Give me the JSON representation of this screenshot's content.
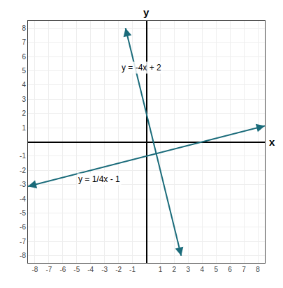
{
  "chart_data": {
    "type": "line",
    "xlabel": "x",
    "ylabel": "y",
    "series": [
      {
        "color": "#1a6b7a",
        "x": [
          -1.5,
          2.5
        ],
        "values": [
          8,
          -8
        ]
      },
      {
        "color": "#1a6b7a",
        "x": [
          -8.5,
          8.5
        ],
        "values": [
          -3.125,
          1.125
        ]
      }
    ],
    "xlim": [
      -8.5,
      8.5
    ],
    "ylim": [
      -8.5,
      8.5
    ],
    "xticks": [
      -8,
      -7,
      -6,
      -5,
      -4,
      -3,
      -2,
      -1,
      1,
      2,
      3,
      4,
      5,
      6,
      7,
      8
    ],
    "yticks": [
      -8,
      -7,
      -6,
      -5,
      -4,
      -3,
      -2,
      -1,
      1,
      2,
      3,
      4,
      5,
      6,
      7,
      8
    ],
    "grid": true,
    "annotations": [
      {
        "text": "y = -4x + 2",
        "x": -1.9,
        "y": 4.8
      },
      {
        "text": "y = 1/4x - 1",
        "x": -5.0,
        "y": -2.6
      }
    ]
  }
}
